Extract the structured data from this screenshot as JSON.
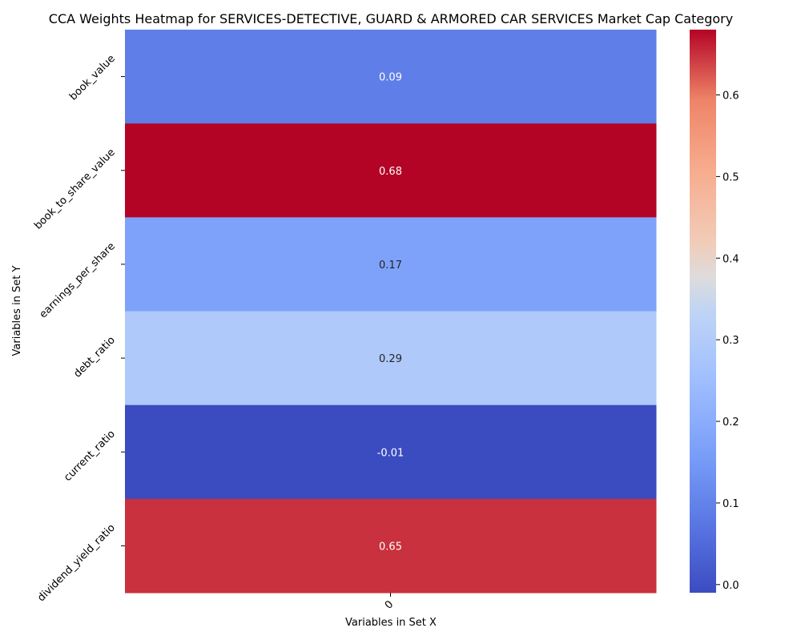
{
  "chart_data": {
    "type": "heatmap",
    "title": "CCA Weights Heatmap for SERVICES-DETECTIVE, GUARD & ARMORED CAR SERVICES Market Cap Category",
    "xlabel": "Variables in Set X",
    "ylabel": "Variables in Set Y",
    "x_categories": [
      "0"
    ],
    "y_categories": [
      "book_value",
      "book_to_share_value",
      "earnings_per_share",
      "debt_ratio",
      "current_ratio",
      "dividend_yield_ratio"
    ],
    "values": [
      [
        0.09
      ],
      [
        0.68
      ],
      [
        0.17
      ],
      [
        0.29
      ],
      [
        -0.01
      ],
      [
        0.65
      ]
    ],
    "value_labels": [
      "0.09",
      "0.68",
      "0.17",
      "0.29",
      "-0.01",
      "0.65"
    ],
    "colormap": "coolwarm",
    "colorbar": {
      "range": [
        -0.01,
        0.68
      ],
      "ticks": [
        0.0,
        0.1,
        0.2,
        0.3,
        0.4,
        0.5,
        0.6
      ],
      "tick_labels": [
        "0.0",
        "0.1",
        "0.2",
        "0.3",
        "0.4",
        "0.5",
        "0.6"
      ]
    }
  }
}
